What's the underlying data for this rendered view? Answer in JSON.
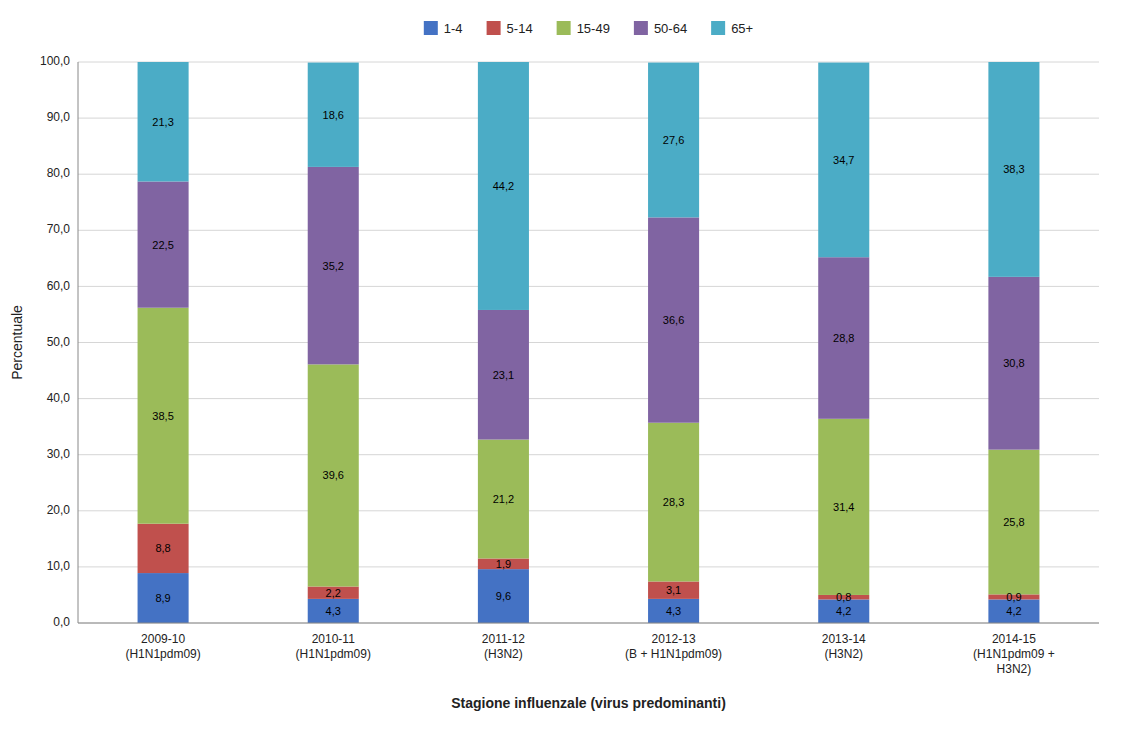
{
  "chart_data": {
    "type": "bar",
    "stacked": true,
    "categories": [
      "2009-10\n(H1N1pdm09)",
      "2010-11\n(H1N1pdm09)",
      "2011-12\n(H3N2)",
      "2012-13\n(B + H1N1pdm09)",
      "2013-14\n(H3N2)",
      "2014-15\n(H1N1pdm09 +\nH3N2)"
    ],
    "series": [
      {
        "name": "1-4",
        "color": "#4472C4",
        "values": [
          8.9,
          4.3,
          9.6,
          4.3,
          4.2,
          4.2
        ],
        "value_labels": [
          "8,9",
          "4,3",
          "9,6",
          "4,3",
          "4,2",
          "4,2"
        ]
      },
      {
        "name": "5-14",
        "color": "#C0504D",
        "values": [
          8.8,
          2.2,
          1.9,
          3.1,
          0.8,
          0.9
        ],
        "value_labels": [
          "8,8",
          "2,2",
          "1,9",
          "3,1",
          "0,8",
          "0,9"
        ]
      },
      {
        "name": "15-49",
        "color": "#9BBB59",
        "values": [
          38.5,
          39.6,
          21.2,
          28.3,
          31.4,
          25.8
        ],
        "value_labels": [
          "38,5",
          "39,6",
          "21,2",
          "28,3",
          "31,4",
          "25,8"
        ]
      },
      {
        "name": "50-64",
        "color": "#8064A2",
        "values": [
          22.5,
          35.2,
          23.1,
          36.6,
          28.8,
          30.8
        ],
        "value_labels": [
          "22,5",
          "35,2",
          "23,1",
          "36,6",
          "28,8",
          "30,8"
        ]
      },
      {
        "name": "65+",
        "color": "#4BACC6",
        "values": [
          21.3,
          18.6,
          44.2,
          27.6,
          34.7,
          38.3
        ],
        "value_labels": [
          "21,3",
          "18,6",
          "44,2",
          "27,6",
          "34,7",
          "38,3"
        ]
      }
    ],
    "y_label": "Percentuale",
    "x_label": "Stagione influenzale (virus predominanti)",
    "ylim": [
      0,
      100
    ],
    "yticks": [
      {
        "value": 0,
        "label": "0,0"
      },
      {
        "value": 10,
        "label": "10,0"
      },
      {
        "value": 20,
        "label": "20,0"
      },
      {
        "value": 30,
        "label": "30,0"
      },
      {
        "value": 40,
        "label": "40,0"
      },
      {
        "value": 50,
        "label": "50,0"
      },
      {
        "value": 60,
        "label": "60,0"
      },
      {
        "value": 70,
        "label": "70,0"
      },
      {
        "value": 80,
        "label": "80,0"
      },
      {
        "value": 90,
        "label": "90,0"
      },
      {
        "value": 100,
        "label": "100,0"
      }
    ],
    "grid": true,
    "legend": "top",
    "data_labels": true
  }
}
